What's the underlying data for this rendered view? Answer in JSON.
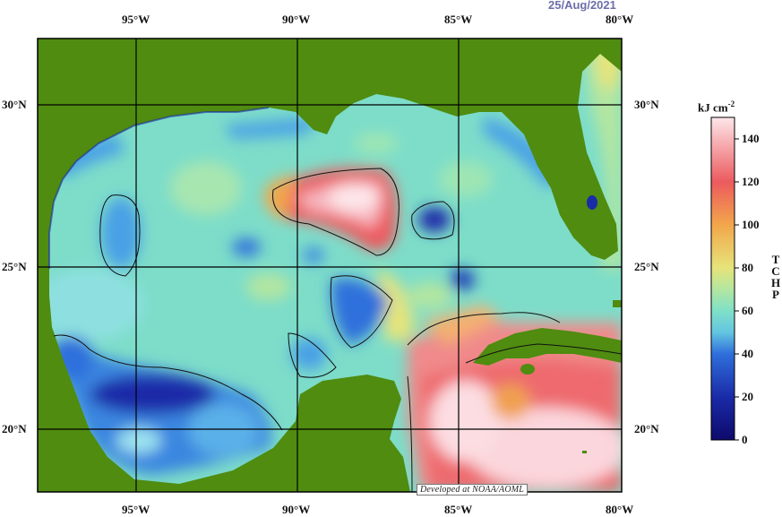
{
  "date": "25/Aug/2021",
  "map": {
    "lon_labels": [
      "95°W",
      "90°W",
      "85°W",
      "80°W"
    ],
    "lat_labels": [
      "30°N",
      "25°N",
      "20°N"
    ],
    "credit": "Developed at NOAA/AOML",
    "colors": {
      "land": "#4f8c10",
      "ocean_base": "#7dddc9"
    }
  },
  "colorbar": {
    "unit": "kJ cm",
    "unit_exp": "-2",
    "title": "TCHP",
    "ticks": [
      "140",
      "120",
      "100",
      "80",
      "60",
      "40",
      "20",
      "0"
    ],
    "range": [
      0,
      150
    ],
    "stops": [
      {
        "value": 0,
        "color": "#0d0a6b"
      },
      {
        "value": 20,
        "color": "#1a2ba8"
      },
      {
        "value": 40,
        "color": "#2f6fdc"
      },
      {
        "value": 50,
        "color": "#63c5e0"
      },
      {
        "value": 60,
        "color": "#7fe0c8"
      },
      {
        "value": 70,
        "color": "#b3e6a0"
      },
      {
        "value": 80,
        "color": "#e6e47a"
      },
      {
        "value": 100,
        "color": "#f2a64b"
      },
      {
        "value": 120,
        "color": "#ec5a5e"
      },
      {
        "value": 150,
        "color": "#fde6ea"
      }
    ]
  }
}
